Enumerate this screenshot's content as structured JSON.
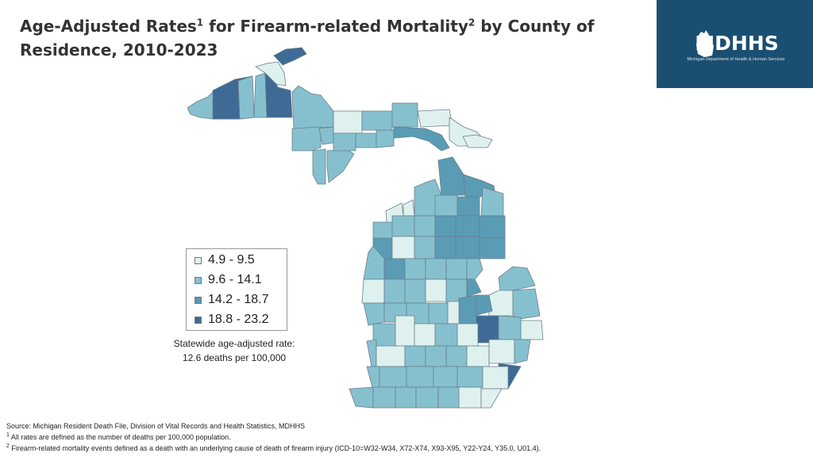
{
  "header": {
    "title_part1": "Age-Adjusted Rates",
    "title_sup1": "1",
    "title_part2": " for Firearm-related Mortality",
    "title_sup2": "2",
    "title_part3": " by County of Residence, 2010-2023"
  },
  "logo": {
    "text": "MDHHS",
    "subtitle": "Michigan Department of Health & Human Services",
    "icon": "michigan-mitten-icon",
    "bg_color": "#1b4f72"
  },
  "legend": {
    "items": [
      {
        "label": "4.9 - 9.5",
        "color": "#dff1ef"
      },
      {
        "label": "9.6 - 14.1",
        "color": "#86c0cf"
      },
      {
        "label": "14.2 - 18.7",
        "color": "#5a9bb6"
      },
      {
        "label": "18.8 - 23.2",
        "color": "#3f6a96"
      }
    ]
  },
  "statewide": {
    "line1": "Statewide age-adjusted rate:",
    "line2": "12.6 deaths per 100,000"
  },
  "footnotes": {
    "source": "Source: Michigan Resident Death File, Division of Vital Records and Health Statistics, MDHHS",
    "note1_sup": "1",
    "note1": " All rates are defined as the number of deaths per 100,000 population.",
    "note2_sup": "2",
    "note2": " Firearm-related mortality events defined as a death with an underlying cause of death of firearm injury (ICD-10=W32-W34, X72-X74, X93-X95, Y22-Y24, Y35.0, U01.4)."
  }
}
